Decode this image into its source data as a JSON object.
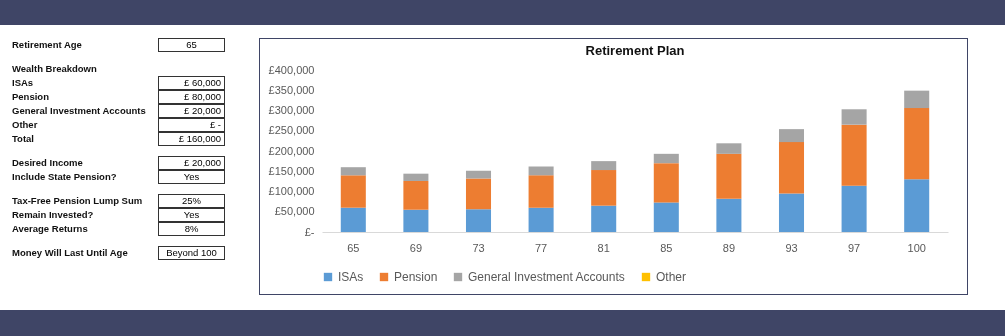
{
  "chart_data": [
    {
      "type": "other",
      "annotations": [
        "Retirement Age",
        "65",
        "Wealth Breakdown",
        "ISAs",
        "£ 60,000",
        "Pension",
        "£ 80,000",
        "General Investment Accounts",
        "£ 20,000",
        "Other",
        "£ -",
        "Total",
        "£ 160,000",
        "Desired Income",
        "£ 20,000",
        "Include State Pension?",
        "Yes",
        "Tax-Free Pension Lump Sum",
        "25%",
        "Remain Invested?",
        "Yes",
        "Average Returns",
        "8%",
        "Money Will Last Until Age",
        "Beyond 100"
      ]
    },
    {
      "type": "bar",
      "title": "Retirement Plan",
      "stacked": true,
      "legend": "bottom",
      "grid": false,
      "categories": [
        "65",
        "69",
        "73",
        "77",
        "81",
        "85",
        "89",
        "93",
        "97",
        "100"
      ],
      "ylim": [
        0,
        400000
      ],
      "yticks": [
        {
          "value": 0,
          "label": "£-"
        },
        {
          "value": 50000,
          "label": "£50,000"
        },
        {
          "value": 100000,
          "label": "£100,000"
        },
        {
          "value": 150000,
          "label": "£150,000"
        },
        {
          "value": 200000,
          "label": "£200,000"
        },
        {
          "value": 250000,
          "label": "£250,000"
        },
        {
          "value": 300000,
          "label": "£300,000"
        },
        {
          "value": 350000,
          "label": "£350,000"
        },
        {
          "value": 400000,
          "label": "£400,000"
        }
      ],
      "series": [
        {
          "name": "ISAs",
          "color": "#5b9bd5",
          "values": [
            60000,
            55000,
            56000,
            60000,
            65000,
            73000,
            82000,
            95000,
            114000,
            130000
          ]
        },
        {
          "name": "Pension",
          "color": "#ed7d31",
          "values": [
            80000,
            71000,
            76000,
            80000,
            88000,
            97000,
            111000,
            127000,
            151000,
            176000
          ]
        },
        {
          "name": "General Investment Accounts",
          "color": "#a5a5a5",
          "values": [
            20000,
            18000,
            19000,
            22000,
            22000,
            23000,
            26000,
            32000,
            38000,
            43000
          ]
        },
        {
          "name": "Other",
          "color": "#ffc000",
          "values": [
            0,
            0,
            0,
            0,
            0,
            0,
            0,
            0,
            0,
            0
          ]
        }
      ]
    }
  ]
}
